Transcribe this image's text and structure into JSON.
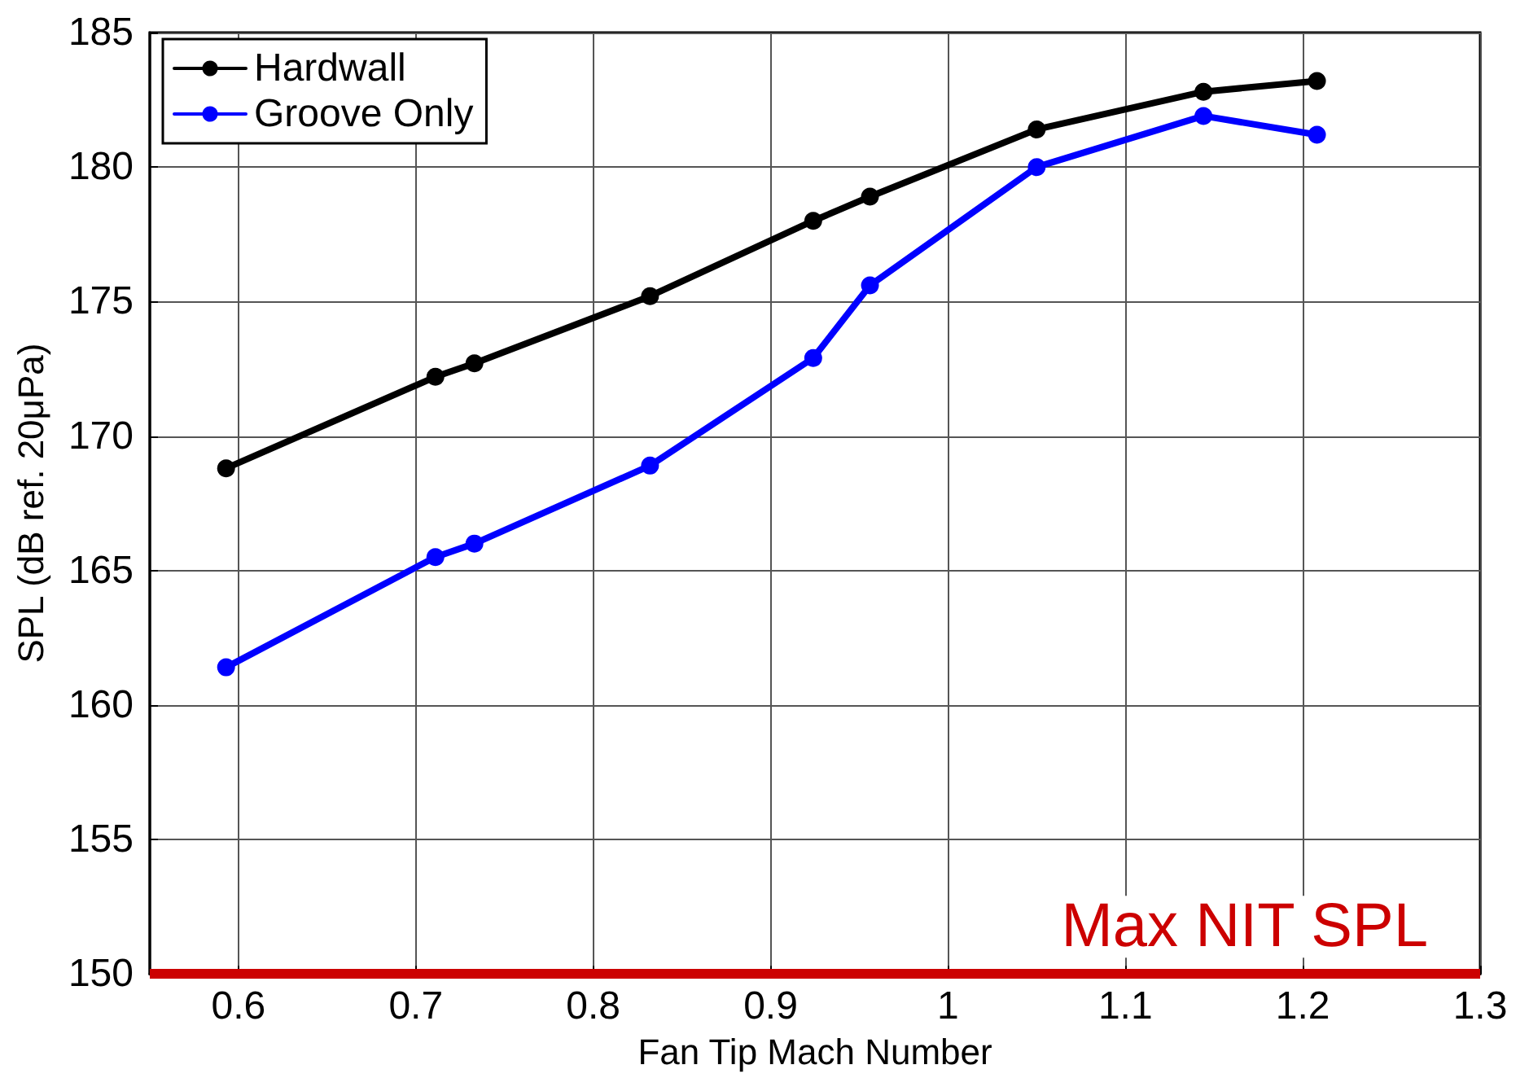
{
  "chart_data": {
    "type": "line",
    "xlabel": "Fan Tip Mach Number",
    "ylabel": "SPL (dB ref. 20μPa)",
    "x": [
      0.593,
      0.711,
      0.733,
      0.832,
      0.924,
      0.956,
      1.05,
      1.144,
      1.208
    ],
    "series": [
      {
        "name": "Hardwall",
        "color": "#000000",
        "values": [
          168.8,
          172.2,
          172.7,
          175.2,
          178.0,
          178.9,
          181.4,
          182.8,
          183.2
        ]
      },
      {
        "name": "Groove Only",
        "color": "#0000ff",
        "values": [
          161.4,
          165.5,
          166.0,
          168.9,
          172.9,
          175.6,
          180.0,
          181.9,
          181.2
        ]
      }
    ],
    "xlim": [
      0.55,
      1.3
    ],
    "xticks": [
      0.6,
      0.7,
      0.8,
      0.9,
      1,
      1.1,
      1.2,
      1.3
    ],
    "ylim": [
      150,
      185
    ],
    "yticks": [
      150,
      155,
      160,
      165,
      170,
      175,
      180,
      185
    ],
    "ref_lines": [
      {
        "axis": "y",
        "value": 150,
        "label": "Max NIT SPL",
        "color": "#cc0000",
        "line_style": "solid"
      }
    ],
    "grid": true,
    "legend": "top left",
    "marker": "circle",
    "line_style": "solid"
  }
}
